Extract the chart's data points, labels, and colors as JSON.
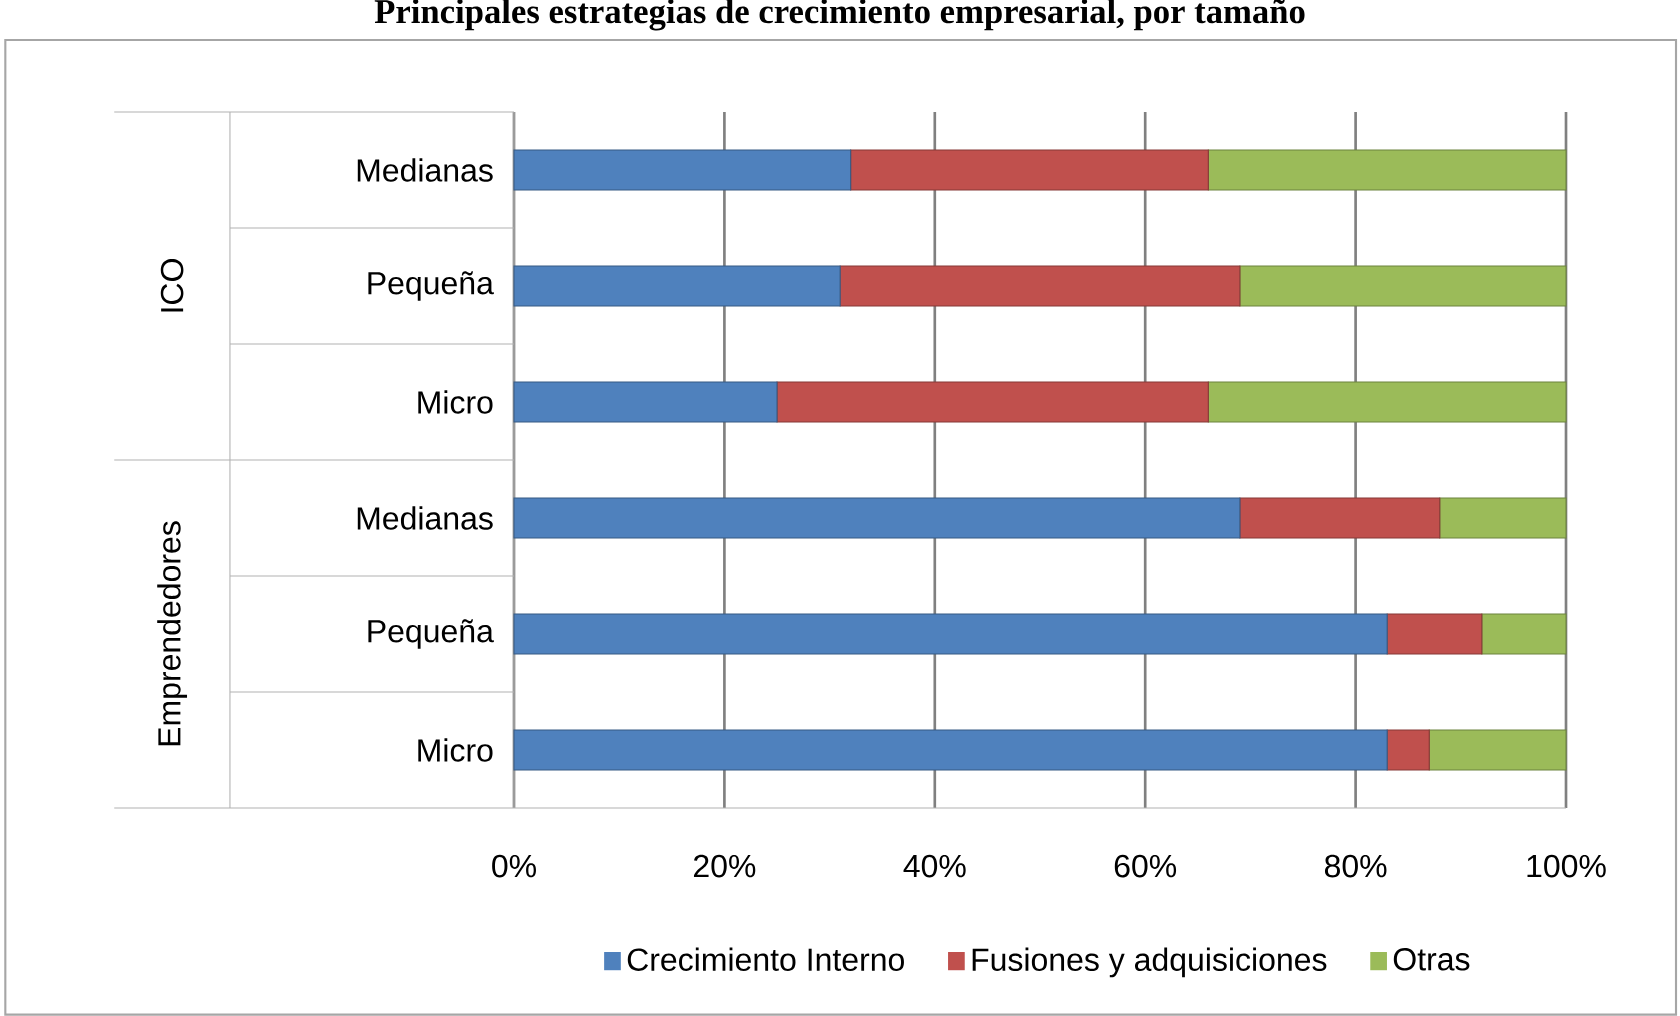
{
  "chart_data": {
    "type": "bar",
    "orientation": "horizontal",
    "stacked": true,
    "title": "Principales estrategias de crecimiento empresarial, por tamaño",
    "categories": [
      "Medianas",
      "Pequeña",
      "Micro",
      "Medianas",
      "Pequeña",
      "Micro"
    ],
    "series": [
      {
        "name": "Crecimiento Interno",
        "color": "#4f81bd",
        "values": [
          32,
          31,
          25,
          69,
          83,
          83
        ]
      },
      {
        "name": "Fusiones y adquisiciones",
        "color": "#c0504d",
        "values": [
          34,
          38,
          41,
          19,
          9,
          4
        ]
      },
      {
        "name": "Otras",
        "color": "#9bbb59",
        "values": [
          34,
          31,
          34,
          12,
          8,
          13
        ]
      }
    ],
    "xlim": [
      0,
      100
    ],
    "xticks": [
      {
        "value": 0,
        "label": "0%"
      },
      {
        "value": 20,
        "label": "20%"
      },
      {
        "value": 40,
        "label": "40%"
      },
      {
        "value": 60,
        "label": "60%"
      },
      {
        "value": 80,
        "label": "80%"
      },
      {
        "value": 100,
        "label": "100%"
      }
    ],
    "grid": "x",
    "legend": "bottom",
    "annotations": [
      "ICO",
      "Emprendedores"
    ]
  }
}
